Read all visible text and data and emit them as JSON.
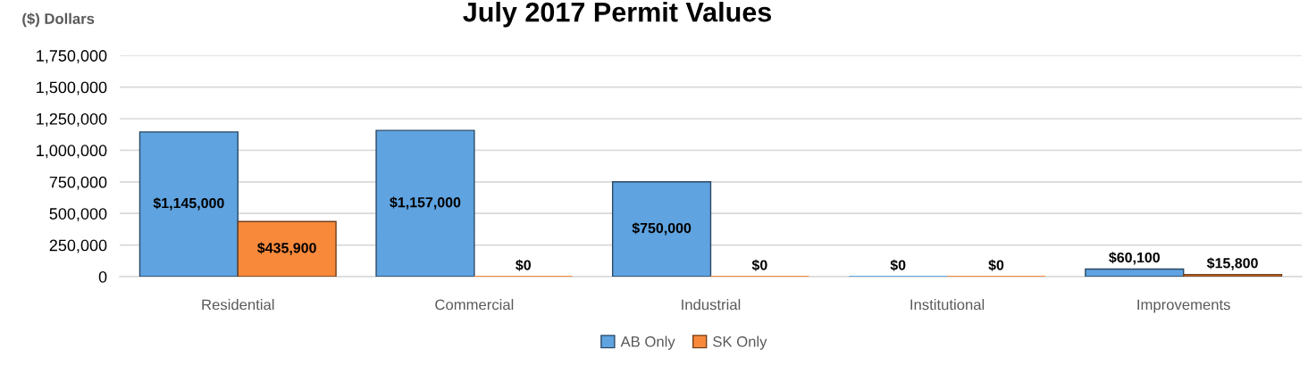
{
  "chart_data": {
    "type": "bar",
    "title": "July 2017 Permit Values",
    "ylabel": "($) Dollars",
    "categories": [
      "Residential",
      "Commercial",
      "Industrial",
      "Institutional",
      "Improvements"
    ],
    "series": [
      {
        "name": "AB Only",
        "color": "#5fa3e0",
        "values": [
          1145000,
          1157000,
          750000,
          0,
          60100
        ],
        "value_labels": [
          "$1,145,000",
          "$1,157,000",
          "$750,000",
          "$0",
          "$60,100"
        ]
      },
      {
        "name": "SK Only",
        "color": "#f8893b",
        "values": [
          435900,
          0,
          0,
          0,
          15800
        ],
        "value_labels": [
          "$435,900",
          "$0",
          "$0",
          "$0",
          "$15,800"
        ]
      }
    ],
    "ylim": [
      0,
      1750000
    ],
    "yticks": [
      0,
      {
        "value": 250000,
        "label": "250,000"
      },
      {
        "value": 500000,
        "label": "500,000"
      },
      {
        "value": 750000,
        "label": "750,000"
      },
      {
        "value": 1000000,
        "label": "1,000,000"
      },
      {
        "value": 1250000,
        "label": "1,250,000"
      },
      {
        "value": 1500000,
        "label": "1,500,000"
      },
      {
        "value": 1750000,
        "label": "1,750,000"
      }
    ],
    "grid": "y",
    "legend": "bottom"
  }
}
